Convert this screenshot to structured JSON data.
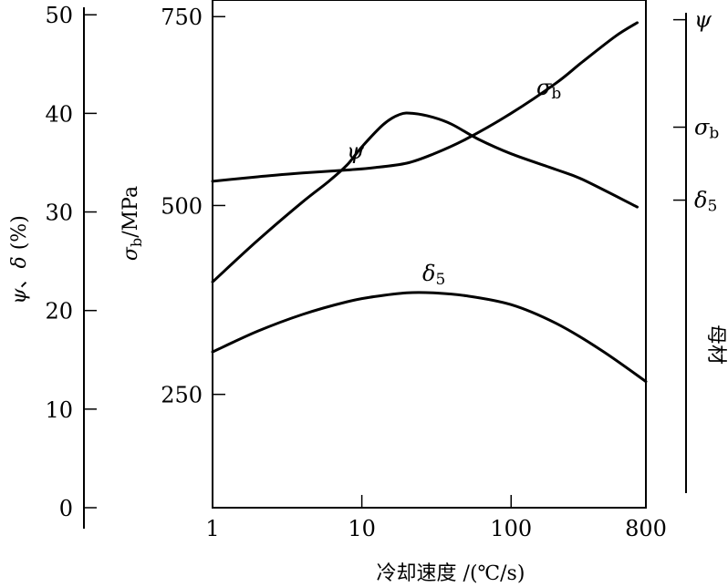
{
  "chart_data": {
    "type": "line",
    "x_scale": "log",
    "xlabel": "冷却速度 /(℃/s)",
    "x_ticks": [
      "1",
      "10",
      "100",
      "800"
    ],
    "x_tick_values": [
      1,
      10,
      100,
      800
    ],
    "xlim": [
      1,
      800
    ],
    "left_axis": {
      "label_parts": [
        "ψ",
        "、",
        "δ",
        " (%)"
      ],
      "ticks": [
        "0",
        "10",
        "20",
        "30",
        "40",
        "50"
      ],
      "tick_values": [
        0,
        10,
        20,
        30,
        40,
        50
      ],
      "ylim": [
        0,
        51.5
      ]
    },
    "inner_axis": {
      "label_symbol": "σ",
      "label_sub": "b",
      "label_unit": "/MPa",
      "ticks": [
        "250",
        "500",
        "750"
      ],
      "tick_values": [
        250,
        500,
        750
      ],
      "ylim": [
        100,
        772
      ]
    },
    "right_scale": {
      "label": "母材",
      "marks": [
        {
          "symbol": "ψ",
          "sub": "",
          "y_percent": 49.5
        },
        {
          "symbol": "σ",
          "sub": "b",
          "y_percent": 38.6
        },
        {
          "symbol": "δ",
          "sub": "5",
          "y_percent": 31.2
        }
      ]
    },
    "series": [
      {
        "name": "σb",
        "label_symbol": "σ",
        "label_sub": "b",
        "axis": "inner",
        "points": [
          [
            1,
            532
          ],
          [
            2,
            538
          ],
          [
            4,
            543
          ],
          [
            8,
            547
          ],
          [
            12,
            550
          ],
          [
            20,
            556
          ],
          [
            30,
            568
          ],
          [
            50,
            588
          ],
          [
            100,
            622
          ],
          [
            200,
            662
          ],
          [
            300,
            690
          ],
          [
            500,
            724
          ],
          [
            700,
            742
          ]
        ]
      },
      {
        "name": "ψ",
        "label_symbol": "ψ",
        "label_sub": "",
        "axis": "left",
        "points": [
          [
            1,
            22.9
          ],
          [
            2,
            27.1
          ],
          [
            4,
            31.0
          ],
          [
            6,
            33.1
          ],
          [
            8,
            34.8
          ],
          [
            10,
            36.6
          ],
          [
            14,
            38.9
          ],
          [
            18,
            39.9
          ],
          [
            22,
            40.0
          ],
          [
            30,
            39.6
          ],
          [
            40,
            38.9
          ],
          [
            60,
            37.4
          ],
          [
            100,
            35.9
          ],
          [
            200,
            34.3
          ],
          [
            300,
            33.3
          ],
          [
            700,
            30.5
          ]
        ]
      },
      {
        "name": "δ5",
        "label_symbol": "δ",
        "label_sub": "5",
        "axis": "left",
        "points": [
          [
            1,
            15.8
          ],
          [
            2,
            17.9
          ],
          [
            4,
            19.6
          ],
          [
            8,
            20.9
          ],
          [
            12,
            21.4
          ],
          [
            20,
            21.8
          ],
          [
            30,
            21.8
          ],
          [
            50,
            21.5
          ],
          [
            100,
            20.6
          ],
          [
            200,
            18.7
          ],
          [
            400,
            16.0
          ],
          [
            800,
            12.8
          ]
        ]
      }
    ]
  }
}
